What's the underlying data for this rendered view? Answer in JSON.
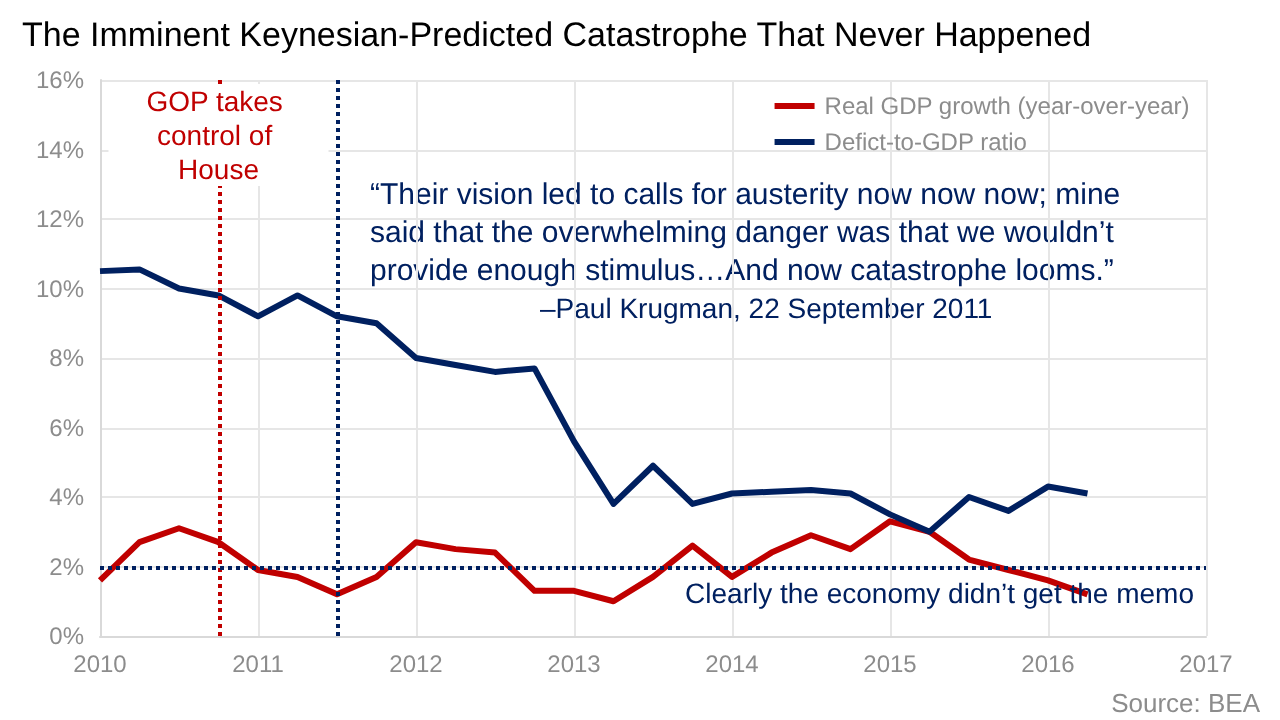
{
  "chart_data": {
    "type": "line",
    "title": "The Imminent Keynesian-Predicted Catastrophe That Never Happened",
    "x": [
      2010,
      2010.25,
      2010.5,
      2010.75,
      2011,
      2011.25,
      2011.5,
      2011.75,
      2012,
      2012.25,
      2012.5,
      2012.75,
      2013,
      2013.25,
      2013.5,
      2013.75,
      2014,
      2014.25,
      2014.5,
      2014.75,
      2015,
      2015.25,
      2015.5,
      2015.75,
      2016,
      2016.25
    ],
    "series": [
      {
        "name": "Real GDP growth (year-over-year)",
        "color": "#c00000",
        "values": [
          1.6,
          2.7,
          3.1,
          2.7,
          1.9,
          1.7,
          1.2,
          1.7,
          2.7,
          2.5,
          2.4,
          1.3,
          1.3,
          1.0,
          1.7,
          2.6,
          1.7,
          2.4,
          2.9,
          2.5,
          3.3,
          3.0,
          2.2,
          1.9,
          1.6,
          1.2
        ]
      },
      {
        "name": "Defict-to-GDP ratio",
        "color": "#002060",
        "values": [
          10.5,
          10.55,
          10.0,
          9.8,
          9.2,
          9.8,
          9.2,
          9.0,
          8.0,
          7.8,
          7.6,
          7.7,
          5.6,
          3.8,
          4.9,
          3.8,
          4.1,
          4.15,
          4.2,
          4.1,
          3.5,
          3.0,
          4.0,
          3.6,
          4.3,
          4.1
        ]
      }
    ],
    "xlim": [
      2010,
      2017
    ],
    "xticks": [
      2010,
      2011,
      2012,
      2013,
      2014,
      2015,
      2016,
      2017
    ],
    "ylim": [
      0,
      16
    ],
    "yticks": [
      {
        "value": 0,
        "label": "0%"
      },
      {
        "value": 2,
        "label": "2%"
      },
      {
        "value": 4,
        "label": "4%"
      },
      {
        "value": 6,
        "label": "6%"
      },
      {
        "value": 8,
        "label": "8%"
      },
      {
        "value": 10,
        "label": "10%"
      },
      {
        "value": 12,
        "label": "12%"
      },
      {
        "value": 14,
        "label": "14%"
      },
      {
        "value": 16,
        "label": "16%"
      }
    ],
    "ref_lines": [
      {
        "axis": "x",
        "value": 2010.75,
        "label": "GOP takes control of House",
        "color": "#c00000",
        "line_style": "dotted"
      },
      {
        "axis": "x",
        "value": 2011.5,
        "color": "#002060",
        "line_style": "dotted"
      },
      {
        "axis": "y",
        "value": 2,
        "label": "Clearly the economy didn’t get the memo",
        "color": "#002060",
        "line_style": "dotted"
      }
    ],
    "annotations": [
      "“Their vision led to calls for austerity now now now; mine said that the overwhelming danger was that we wouldn’t provide enough stimulus…And now catastrophe looms.”",
      "–Paul Krugman, 22 September 2011",
      "Source: BEA"
    ],
    "grid": true,
    "legend": "top right",
    "marker": "none",
    "line_style": "solid"
  }
}
